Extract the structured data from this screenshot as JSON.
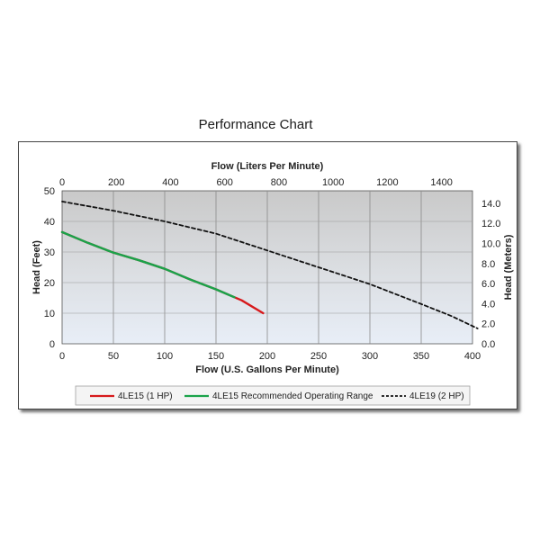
{
  "chart_data": {
    "type": "line",
    "title": "Performance Chart",
    "xlabel": "Flow (U.S. Gallons Per Minute)",
    "x2label": "Flow (Liters Per Minute)",
    "ylabel": "Head (Feet)",
    "y2label": "Head (Meters)",
    "xlim": [
      0,
      400
    ],
    "ylim": [
      0,
      50
    ],
    "x2lim": [
      0,
      1514
    ],
    "y2lim": [
      0,
      15.24
    ],
    "x_ticks": [
      "0",
      "50",
      "100",
      "150",
      "200",
      "250",
      "300",
      "350",
      "400"
    ],
    "y_ticks": [
      "0",
      "10",
      "20",
      "30",
      "40",
      "50"
    ],
    "x2_ticks": [
      "0",
      "200",
      "400",
      "600",
      "800",
      "1000",
      "1200",
      "1400"
    ],
    "y2_ticks": [
      "0.0",
      "2.0",
      "4.0",
      "6.0",
      "8.0",
      "10.0",
      "12.0",
      "14.0"
    ],
    "grid": true,
    "legend_position": "bottom",
    "series": [
      {
        "name": "4LE15 (1 HP)",
        "color": "#d7191c",
        "style": "solid",
        "x": [
          0,
          25,
          50,
          75,
          100,
          125,
          150,
          175,
          196
        ],
        "y": [
          36.5,
          33,
          29.8,
          27.3,
          24.5,
          21,
          17.8,
          14.2,
          10
        ]
      },
      {
        "name": "4LE15 Recommended Operating Range",
        "color": "#1aa34a",
        "style": "solid",
        "x": [
          0,
          25,
          50,
          75,
          100,
          125,
          150,
          168
        ],
        "y": [
          36.5,
          33,
          29.8,
          27.3,
          24.5,
          21,
          17.8,
          15.2
        ]
      },
      {
        "name": "4LE19 (2 HP)",
        "color": "#111111",
        "style": "dashed",
        "x": [
          0,
          50,
          100,
          150,
          200,
          250,
          300,
          350,
          380,
          405
        ],
        "y": [
          46.5,
          43.5,
          40,
          36,
          30.5,
          25,
          19.5,
          13,
          9,
          5
        ]
      }
    ]
  }
}
